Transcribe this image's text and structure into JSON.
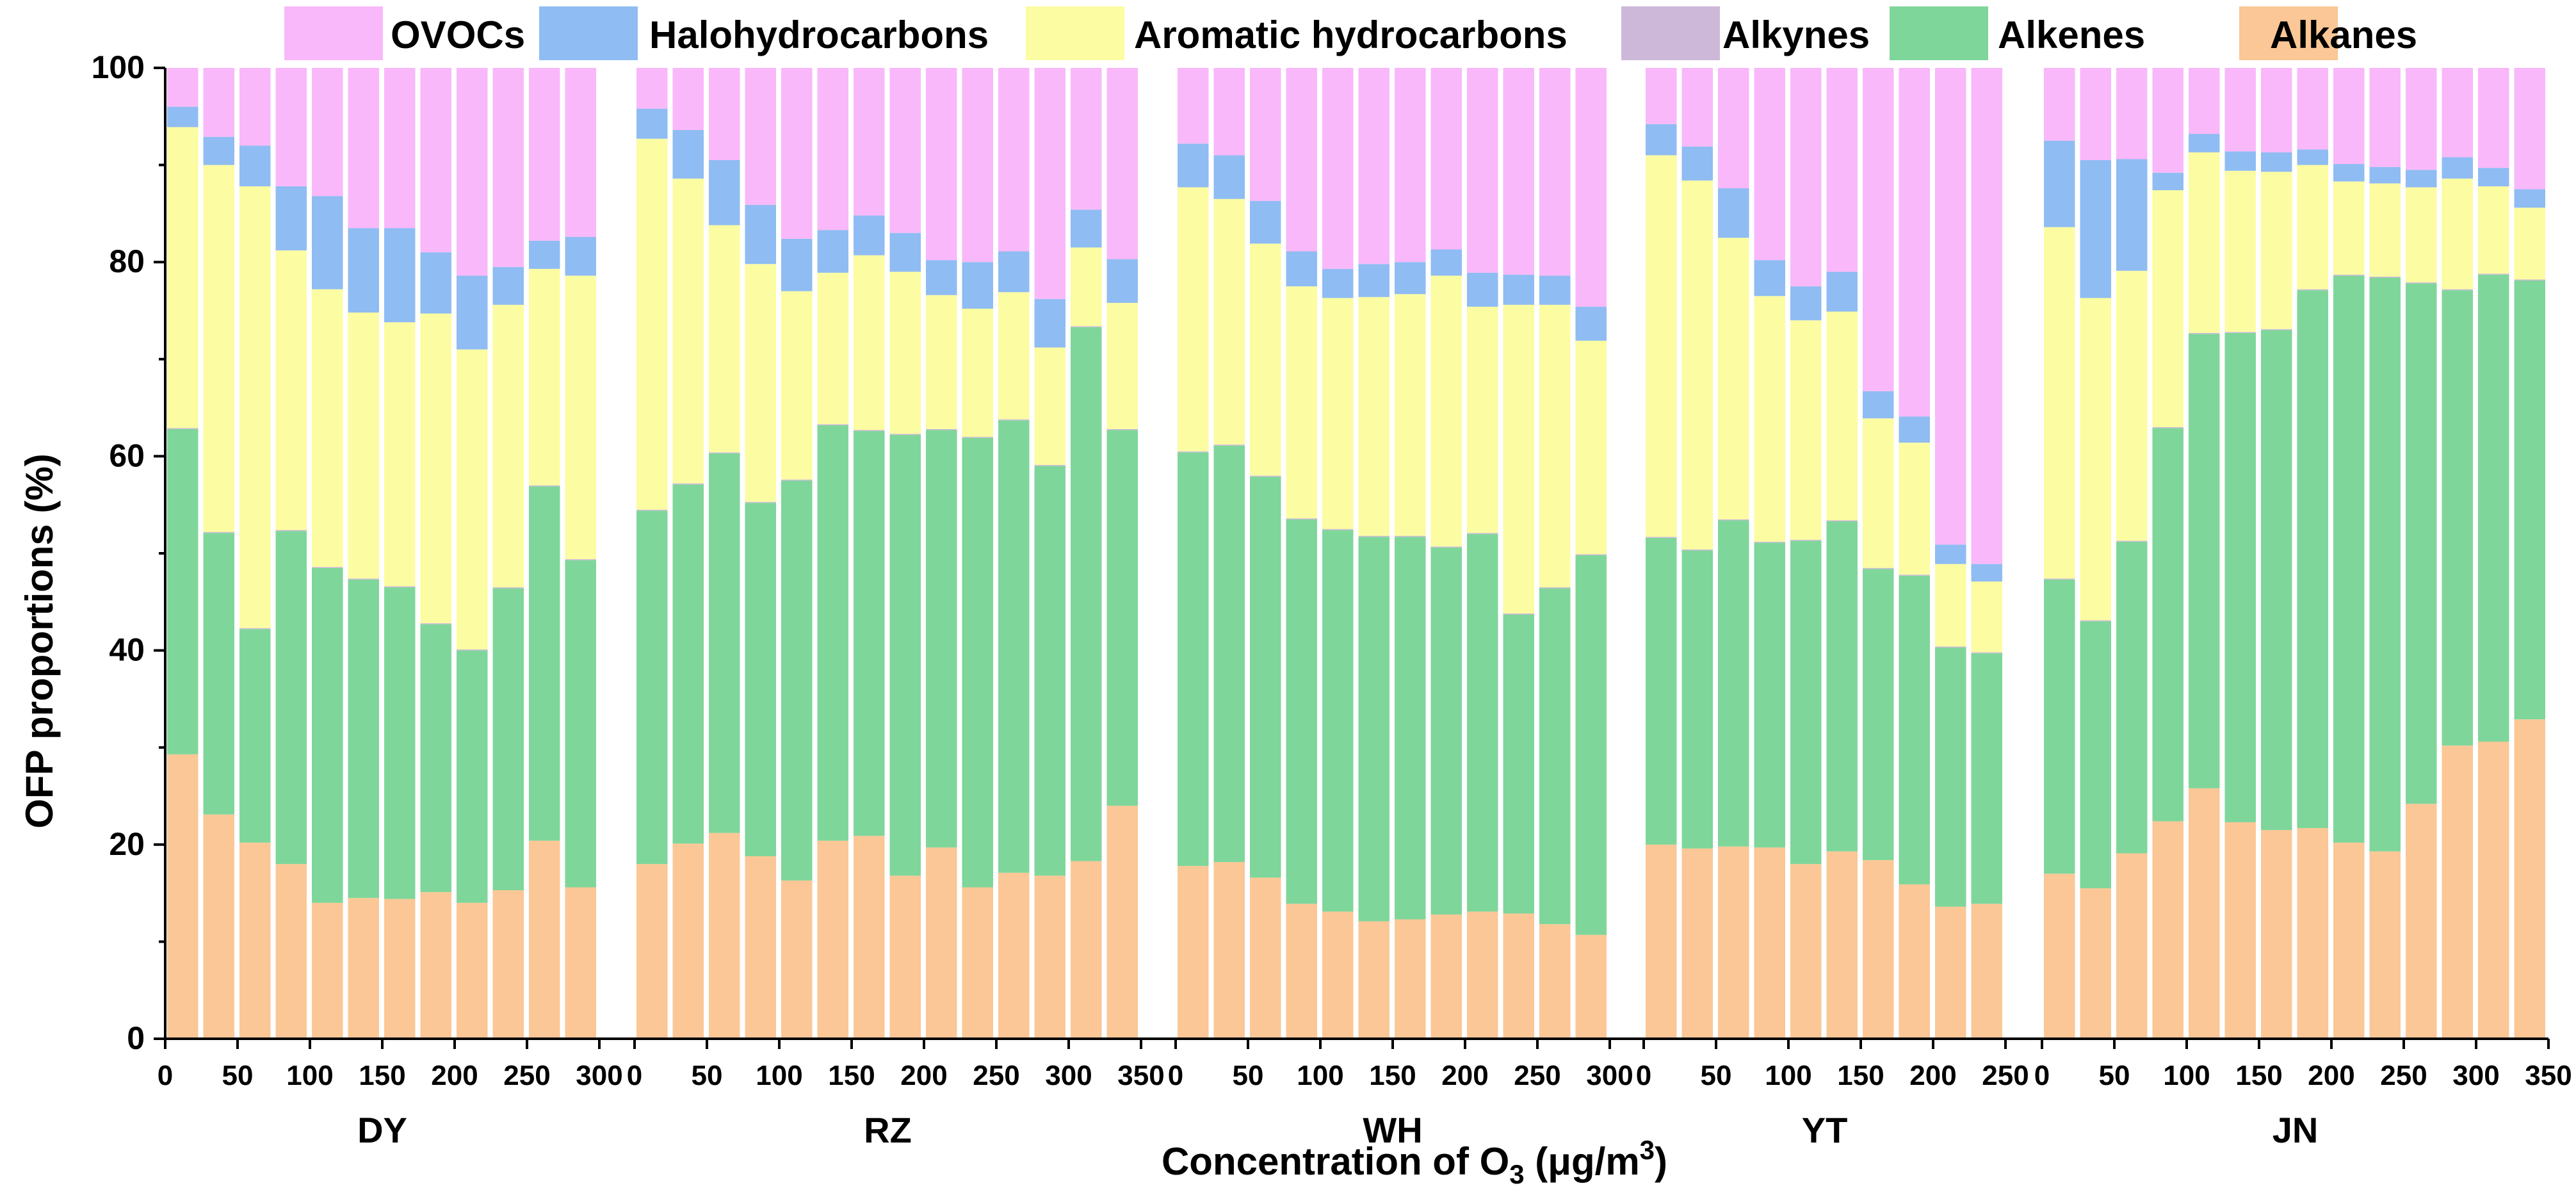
{
  "chart_data": {
    "type": "bar",
    "stacked": true,
    "title": "",
    "xlabel": "Concentration of O",
    "xlabel_sub": "3",
    "xlabel_unit": " (μg/m",
    "xlabel_sup": "3",
    "xlabel_close": ")",
    "ylabel": "OFP proportions (%)",
    "ylim": [
      0,
      100
    ],
    "yticks": [
      "0",
      "20",
      "40",
      "60",
      "80",
      "100"
    ],
    "legend_position": "top",
    "legend": [
      {
        "name": "OVOCs",
        "color": "#f9b8f9"
      },
      {
        "name": "Halohydrocarbons",
        "color": "#8fbcf2"
      },
      {
        "name": "Aromatic hydrocarbons",
        "color": "#fcfca2"
      },
      {
        "name": "Alkynes",
        "color": "#cdb8d9"
      },
      {
        "name": "Alkenes",
        "color": "#7fd69a"
      },
      {
        "name": "Alkanes",
        "color": "#fbc796"
      }
    ],
    "stack_order": [
      "Alkanes",
      "Alkenes",
      "Alkynes",
      "Aromatic hydrocarbons",
      "Halohydrocarbons",
      "OVOCs"
    ],
    "groups": [
      {
        "site": "DY",
        "xticks": [
          "0",
          "50",
          "100",
          "150",
          "200",
          "250",
          "300"
        ],
        "xmax": 300,
        "bars": [
          [
            29.3,
            33.5,
            0.1,
            31.0,
            2.1,
            4.0
          ],
          [
            23.1,
            29.0,
            0.1,
            37.8,
            2.9,
            7.1
          ],
          [
            20.2,
            22.0,
            0.1,
            45.5,
            4.2,
            8.0
          ],
          [
            18.0,
            34.3,
            0.1,
            28.8,
            6.6,
            12.2
          ],
          [
            14.0,
            34.5,
            0.1,
            28.6,
            9.6,
            13.2
          ],
          [
            14.5,
            32.8,
            0.1,
            27.4,
            8.7,
            16.5
          ],
          [
            14.4,
            32.1,
            0.1,
            27.2,
            9.7,
            16.5
          ],
          [
            15.1,
            27.6,
            0.1,
            31.9,
            6.3,
            19.0
          ],
          [
            14.0,
            26.0,
            0.1,
            30.9,
            7.6,
            21.4
          ],
          [
            15.3,
            31.1,
            0.1,
            29.1,
            3.9,
            20.5
          ],
          [
            20.4,
            36.5,
            0.1,
            22.3,
            2.9,
            17.8
          ],
          [
            15.6,
            33.7,
            0.1,
            29.2,
            4.0,
            17.4
          ]
        ]
      },
      {
        "site": "RZ",
        "xticks": [
          "0",
          "50",
          "100",
          "150",
          "200",
          "250",
          "300",
          "350"
        ],
        "xmax": 350,
        "bars": [
          [
            18.0,
            36.4,
            0.1,
            38.2,
            3.1,
            4.2
          ],
          [
            20.1,
            37.0,
            0.1,
            31.4,
            5.0,
            6.4
          ],
          [
            21.2,
            39.1,
            0.1,
            23.4,
            6.7,
            9.5
          ],
          [
            18.8,
            36.4,
            0.1,
            24.5,
            6.1,
            14.1
          ],
          [
            16.3,
            41.2,
            0.1,
            19.4,
            5.4,
            17.6
          ],
          [
            20.4,
            42.8,
            0.1,
            15.6,
            4.4,
            16.7
          ],
          [
            20.9,
            41.7,
            0.1,
            18.0,
            4.1,
            15.2
          ],
          [
            16.8,
            45.4,
            0.1,
            16.7,
            4.0,
            17.0
          ],
          [
            19.7,
            43.0,
            0.1,
            13.8,
            3.6,
            19.8
          ],
          [
            15.6,
            46.3,
            0.1,
            13.2,
            4.8,
            20.0
          ],
          [
            17.1,
            46.6,
            0.1,
            13.1,
            4.2,
            18.9
          ],
          [
            16.8,
            42.2,
            0.1,
            12.1,
            5.0,
            23.8
          ],
          [
            18.3,
            55.0,
            0.1,
            8.1,
            3.9,
            14.6
          ],
          [
            24.0,
            38.7,
            0.1,
            13.0,
            4.5,
            19.7
          ]
        ]
      },
      {
        "site": "WH",
        "xticks": [
          "0",
          "50",
          "100",
          "150",
          "200",
          "250",
          "300"
        ],
        "xmax": 300,
        "bars": [
          [
            17.8,
            42.6,
            0.1,
            27.2,
            4.5,
            7.8
          ],
          [
            18.2,
            42.9,
            0.1,
            25.3,
            4.5,
            9.0
          ],
          [
            16.6,
            41.3,
            0.1,
            23.9,
            4.4,
            13.7
          ],
          [
            13.9,
            39.6,
            0.1,
            23.9,
            3.6,
            18.9
          ],
          [
            13.1,
            39.3,
            0.1,
            23.8,
            3.0,
            20.7
          ],
          [
            12.1,
            39.6,
            0.1,
            24.6,
            3.4,
            20.2
          ],
          [
            12.3,
            39.4,
            0.1,
            24.9,
            3.3,
            20.0
          ],
          [
            12.8,
            37.8,
            0.1,
            27.9,
            2.7,
            18.7
          ],
          [
            13.1,
            38.9,
            0.1,
            23.3,
            3.5,
            21.1
          ],
          [
            12.9,
            30.8,
            0.1,
            31.8,
            3.1,
            21.3
          ],
          [
            11.8,
            34.6,
            0.1,
            29.1,
            3.0,
            21.4
          ],
          [
            10.7,
            39.1,
            0.1,
            22.0,
            3.5,
            24.6
          ]
        ]
      },
      {
        "site": "YT",
        "xticks": [
          "0",
          "50",
          "100",
          "150",
          "200",
          "250"
        ],
        "xmax": 250,
        "bars": [
          [
            20.0,
            31.6,
            0.1,
            39.3,
            3.2,
            5.8
          ],
          [
            19.6,
            30.7,
            0.1,
            38.0,
            3.5,
            8.1
          ],
          [
            19.8,
            33.6,
            0.1,
            29.0,
            5.1,
            12.4
          ],
          [
            19.7,
            31.4,
            0.1,
            25.3,
            3.7,
            19.8
          ],
          [
            18.0,
            33.3,
            0.1,
            22.6,
            3.5,
            22.5
          ],
          [
            19.3,
            34.0,
            0.1,
            21.5,
            4.1,
            21.0
          ],
          [
            18.4,
            30.0,
            0.1,
            15.4,
            2.8,
            33.3
          ],
          [
            15.9,
            31.8,
            0.1,
            13.6,
            2.7,
            35.9
          ],
          [
            13.6,
            26.7,
            0.1,
            8.5,
            2.0,
            49.1
          ],
          [
            13.9,
            25.8,
            0.1,
            7.3,
            1.8,
            51.1
          ]
        ]
      },
      {
        "site": "JN",
        "xticks": [
          "0",
          "50",
          "100",
          "150",
          "200",
          "250",
          "300",
          "350"
        ],
        "xmax": 350,
        "bars": [
          [
            17.0,
            30.3,
            0.1,
            36.2,
            8.9,
            7.5
          ],
          [
            15.5,
            27.5,
            0.1,
            33.2,
            14.2,
            9.5
          ],
          [
            19.1,
            32.1,
            0.1,
            27.8,
            11.5,
            9.4
          ],
          [
            22.4,
            40.5,
            0.1,
            24.4,
            1.8,
            10.8
          ],
          [
            25.8,
            46.8,
            0.1,
            18.6,
            1.9,
            6.8
          ],
          [
            22.3,
            50.4,
            0.1,
            16.6,
            2.0,
            8.6
          ],
          [
            21.5,
            51.5,
            0.1,
            16.2,
            2.0,
            8.7
          ],
          [
            21.7,
            55.4,
            0.1,
            12.8,
            1.6,
            8.4
          ],
          [
            20.2,
            58.4,
            0.1,
            9.6,
            1.8,
            9.9
          ],
          [
            19.3,
            59.1,
            0.1,
            9.6,
            1.7,
            10.2
          ],
          [
            24.2,
            53.6,
            0.1,
            9.8,
            1.8,
            10.5
          ],
          [
            30.2,
            46.9,
            0.1,
            11.4,
            2.2,
            9.2
          ],
          [
            30.6,
            48.1,
            0.1,
            9.0,
            1.9,
            10.3
          ],
          [
            32.9,
            45.2,
            0.1,
            7.4,
            1.9,
            12.5
          ]
        ]
      }
    ]
  }
}
